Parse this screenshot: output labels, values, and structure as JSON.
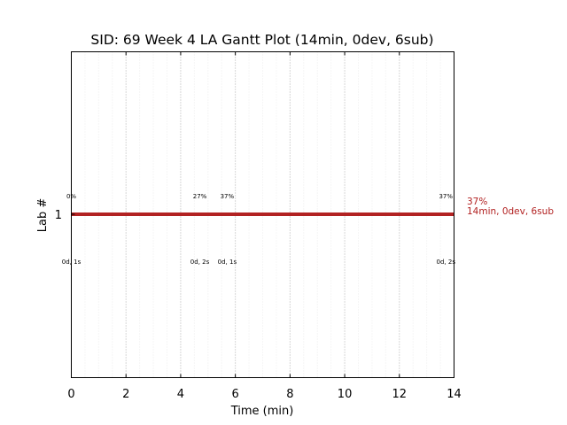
{
  "chart_data": {
    "type": "gantt",
    "title": "SID: 69 Week 4 LA Gantt Plot (14min, 0dev, 6sub)",
    "xlabel": "Time (min)",
    "ylabel": "Lab #",
    "xlim": [
      0,
      14
    ],
    "x_ticks": [
      "0",
      "2",
      "4",
      "6",
      "8",
      "10",
      "12",
      "14"
    ],
    "y_ticks": [
      "1"
    ],
    "grid": "vertical dotted",
    "series_color": "#b22222",
    "bars": [
      {
        "lab": 1,
        "start": 0,
        "end": 14
      }
    ],
    "annotations_above": [
      {
        "x": 0,
        "text": "0%"
      },
      {
        "x": 4.7,
        "text": "27%"
      },
      {
        "x": 5.7,
        "text": "37%"
      },
      {
        "x": 13.7,
        "text": "37%"
      }
    ],
    "annotations_below": [
      {
        "x": 0,
        "text": "0d, 1s"
      },
      {
        "x": 4.7,
        "text": "0d, 2s"
      },
      {
        "x": 5.7,
        "text": "0d, 1s"
      },
      {
        "x": 13.7,
        "text": "0d, 2s"
      }
    ],
    "side_label": {
      "line1": "37%",
      "line2": "14min, 0dev, 6sub"
    }
  }
}
